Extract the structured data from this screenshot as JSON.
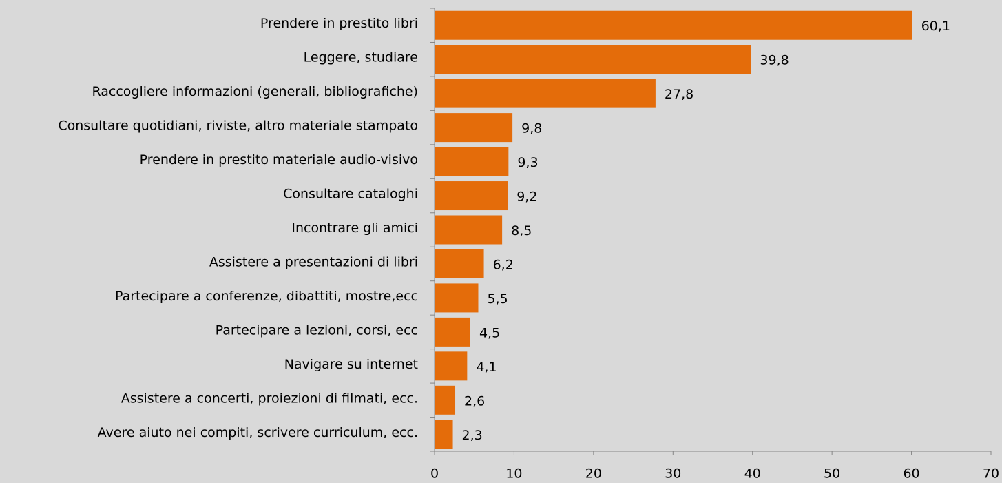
{
  "chart_data": {
    "type": "hbar",
    "categories": [
      "Prendere in prestito libri",
      "Leggere, studiare",
      "Raccogliere informazioni (generali, bibliografiche)",
      "Consultare quotidiani, riviste, altro materiale stampato",
      "Prendere in prestito materiale audio-visivo",
      "Consultare cataloghi",
      "Incontrare gli amici",
      "Assistere a presentazioni di libri",
      "Partecipare a conferenze, dibattiti, mostre,ecc",
      "Partecipare a lezioni, corsi, ecc",
      "Navigare su internet",
      "Assistere a concerti, proiezioni di filmati, ecc.",
      "Avere aiuto nei compiti, scrivere curriculum, ecc."
    ],
    "values": [
      60.1,
      39.8,
      27.8,
      9.8,
      9.3,
      9.2,
      8.5,
      6.2,
      5.5,
      4.5,
      4.1,
      2.6,
      2.3
    ],
    "value_labels": [
      "60,1",
      "39,8",
      "27,8",
      "9,8",
      "9,3",
      "9,2",
      "8,5",
      "6,2",
      "5,5",
      "4,5",
      "4,1",
      "2,6",
      "2,3"
    ],
    "color": "#e46c0a",
    "xlim": [
      0,
      70
    ],
    "xticks": [
      0,
      10,
      20,
      30,
      40,
      50,
      60,
      70
    ],
    "grid": false
  }
}
